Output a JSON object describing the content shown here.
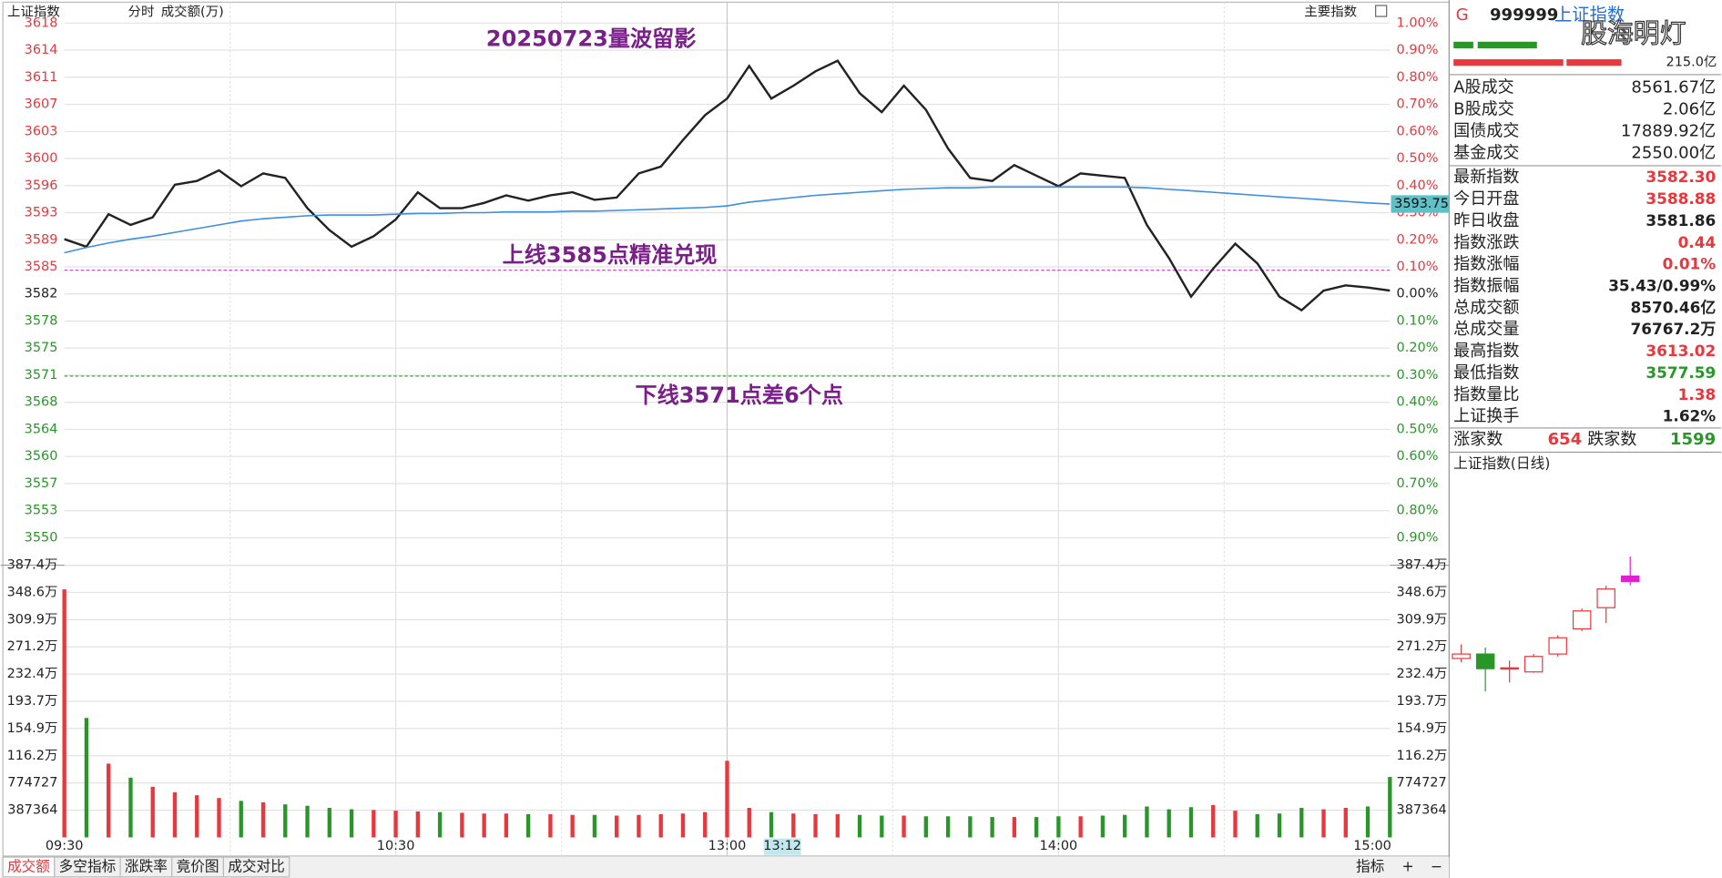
{
  "header": {
    "index_name": "上证指数",
    "tabs": [
      "分时",
      "成交额(万)"
    ],
    "main_index": "主要指数"
  },
  "chart_data": [
    {
      "type": "line",
      "title": "20250723量波留影",
      "annotations": [
        "上线3585点精准兑现",
        "下线3571点差6个点"
      ],
      "x": [
        0,
        4,
        8,
        12,
        16,
        20,
        24,
        28,
        32,
        36,
        40,
        44,
        48,
        52,
        56,
        60,
        64,
        68,
        72,
        76,
        80,
        84,
        88,
        92,
        96,
        100,
        104,
        108,
        112,
        116,
        120,
        124,
        128,
        132,
        136,
        140,
        144,
        148,
        152,
        156,
        160,
        164,
        168,
        172,
        176,
        180,
        184,
        188,
        192,
        196,
        200,
        204,
        208,
        212,
        216,
        220,
        224,
        228,
        232,
        236,
        240
      ],
      "xlim": [
        0,
        240
      ],
      "xticks": [
        {
          "value": 0,
          "label": "09:30"
        },
        {
          "value": 60,
          "label": "10:30"
        },
        {
          "value": 120,
          "label": "13:00"
        },
        {
          "value": 180,
          "label": "14:00"
        },
        {
          "value": 240,
          "label": "15:00"
        }
      ],
      "cursor_x": {
        "value": 130,
        "label": "13:12"
      },
      "series": [
        {
          "color": "#222222",
          "values": [
            3589.1,
            3588.1,
            3592.4,
            3591.0,
            3592.0,
            3596.3,
            3596.8,
            3598.2,
            3596.1,
            3597.8,
            3597.2,
            3593.2,
            3590.3,
            3588.1,
            3589.5,
            3591.7,
            3595.3,
            3593.2,
            3593.2,
            3593.9,
            3594.9,
            3594.2,
            3594.9,
            3595.3,
            3594.3,
            3594.6,
            3597.8,
            3598.7,
            3602.2,
            3605.5,
            3607.7,
            3612.0,
            3607.7,
            3609.4,
            3611.3,
            3612.7,
            3608.4,
            3605.9,
            3609.4,
            3606.2,
            3601.1,
            3597.2,
            3596.8,
            3598.9,
            3597.5,
            3596.1,
            3597.8,
            3597.5,
            3597.2,
            3591.0,
            3586.6,
            3581.5,
            3585.2,
            3588.5,
            3585.9,
            3581.5,
            3579.7,
            3582.3,
            3583.0,
            3582.7,
            3582.3
          ]
        },
        {
          "color": "#3a8ee6",
          "values": [
            3587.3,
            3588.0,
            3588.6,
            3589.1,
            3589.5,
            3590.0,
            3590.5,
            3591.0,
            3591.5,
            3591.8,
            3592.0,
            3592.2,
            3592.3,
            3592.3,
            3592.3,
            3592.4,
            3592.5,
            3592.5,
            3592.6,
            3592.6,
            3592.7,
            3592.7,
            3592.7,
            3592.8,
            3592.8,
            3592.9,
            3593.0,
            3593.1,
            3593.2,
            3593.3,
            3593.5,
            3594.0,
            3594.3,
            3594.6,
            3594.9,
            3595.1,
            3595.3,
            3595.5,
            3595.7,
            3595.8,
            3595.9,
            3595.9,
            3596.0,
            3596.0,
            3596.0,
            3596.0,
            3596.0,
            3596.0,
            3596.0,
            3595.9,
            3595.7,
            3595.5,
            3595.3,
            3595.1,
            3594.9,
            3594.7,
            3594.5,
            3594.3,
            3594.1,
            3593.9,
            3593.75
          ]
        }
      ],
      "ylim": [
        3549.62,
        3617.68
      ],
      "yticks": [
        {
          "value": 3617.68,
          "label": "3618"
        },
        {
          "value": 3614.1,
          "label": "3614"
        },
        {
          "value": 3610.52,
          "label": "3611"
        },
        {
          "value": 3606.93,
          "label": "3607"
        },
        {
          "value": 3603.35,
          "label": "3603"
        },
        {
          "value": 3599.77,
          "label": "3600"
        },
        {
          "value": 3596.19,
          "label": "3596"
        },
        {
          "value": 3592.61,
          "label": "3593"
        },
        {
          "value": 3589.02,
          "label": "3589"
        },
        {
          "value": 3585.44,
          "label": "3585"
        },
        {
          "value": 3581.86,
          "label": "3582"
        },
        {
          "value": 3578.28,
          "label": "3578"
        },
        {
          "value": 3574.7,
          "label": "3575"
        },
        {
          "value": 3571.11,
          "label": "3571"
        },
        {
          "value": 3567.53,
          "label": "3568"
        },
        {
          "value": 3563.95,
          "label": "3564"
        },
        {
          "value": 3560.37,
          "label": "3560"
        },
        {
          "value": 3556.79,
          "label": "3557"
        },
        {
          "value": 3553.2,
          "label": "3553"
        },
        {
          "value": 3549.62,
          "label": "3550"
        }
      ],
      "y2lim": [
        -0.9,
        1.0
      ],
      "y2ticks": [
        {
          "value": 1.0,
          "label": "1.00%"
        },
        {
          "value": 0.9,
          "label": "0.90%"
        },
        {
          "value": 0.8,
          "label": "0.80%"
        },
        {
          "value": 0.7,
          "label": "0.70%"
        },
        {
          "value": 0.6,
          "label": "0.60%"
        },
        {
          "value": 0.5,
          "label": "0.50%"
        },
        {
          "value": 0.4,
          "label": "0.40%"
        },
        {
          "value": 0.3,
          "label": "0.30%"
        },
        {
          "value": 0.2,
          "label": "0.20%"
        },
        {
          "value": 0.1,
          "label": "0.10%"
        },
        {
          "value": 0,
          "label": "0.00%"
        },
        {
          "value": -0.1,
          "label": "0.10%"
        },
        {
          "value": -0.2,
          "label": "0.20%"
        },
        {
          "value": -0.3,
          "label": "0.30%"
        },
        {
          "value": -0.4,
          "label": "0.40%"
        },
        {
          "value": -0.5,
          "label": "0.50%"
        },
        {
          "value": -0.6,
          "label": "0.60%"
        },
        {
          "value": -0.7,
          "label": "0.70%"
        },
        {
          "value": -0.8,
          "label": "0.80%"
        },
        {
          "value": -0.9,
          "label": "0.90%"
        }
      ],
      "ref_lines": [
        {
          "value": 3585,
          "color": "#c040c0"
        },
        {
          "value": 3571,
          "color": "#3a9a3a"
        }
      ],
      "grid": true,
      "up_color": "#e8373d",
      "down_color": "#2a962a"
    },
    {
      "type": "bar",
      "x": [
        0,
        4,
        8,
        12,
        16,
        20,
        24,
        28,
        32,
        36,
        40,
        44,
        48,
        52,
        56,
        60,
        64,
        68,
        72,
        76,
        80,
        84,
        88,
        92,
        96,
        100,
        104,
        108,
        112,
        116,
        120,
        124,
        128,
        132,
        136,
        140,
        144,
        148,
        152,
        156,
        160,
        164,
        168,
        172,
        176,
        180,
        184,
        188,
        192,
        196,
        200,
        204,
        208,
        212,
        216,
        220,
        224,
        228,
        232,
        236,
        240
      ],
      "xlim": [
        0,
        240
      ],
      "values": [
        3530000,
        1700000,
        1050000,
        850000,
        720000,
        640000,
        600000,
        560000,
        520000,
        500000,
        470000,
        450000,
        420000,
        400000,
        390000,
        380000,
        370000,
        360000,
        350000,
        340000,
        340000,
        330000,
        330000,
        320000,
        320000,
        310000,
        320000,
        330000,
        340000,
        360000,
        1090000,
        420000,
        360000,
        340000,
        330000,
        330000,
        320000,
        310000,
        310000,
        300000,
        300000,
        300000,
        290000,
        290000,
        290000,
        300000,
        300000,
        310000,
        320000,
        440000,
        400000,
        430000,
        460000,
        380000,
        330000,
        340000,
        420000,
        400000,
        420000,
        440000,
        860000
      ],
      "ylim": [
        0,
        3873640
      ],
      "yticks": [
        {
          "value": 3873640,
          "label": "387.4万"
        },
        {
          "value": 3486276,
          "label": "348.6万"
        },
        {
          "value": 3098912,
          "label": "309.9万"
        },
        {
          "value": 2711548,
          "label": "271.2万"
        },
        {
          "value": 2324184,
          "label": "232.4万"
        },
        {
          "value": 1936820,
          "label": "193.7万"
        },
        {
          "value": 1549456,
          "label": "154.9万"
        },
        {
          "value": 1162092,
          "label": "116.2万"
        },
        774727,
        387364
      ],
      "grid": true,
      "up_color": "#e8373d",
      "down_color": "#2a962a"
    },
    {
      "type": "candlestick",
      "title": "上证指数(日线)",
      "open": [
        3487.5,
        3493,
        3475,
        3471,
        3493,
        3524,
        3550,
        3588.88
      ],
      "high": [
        3505,
        3501,
        3485,
        3493,
        3516,
        3549,
        3577,
        3613.02
      ],
      "low": [
        3483,
        3447,
        3458,
        3470,
        3490,
        3521,
        3531,
        3577.59
      ],
      "close": [
        3493,
        3475,
        3476,
        3490,
        3513,
        3546,
        3573,
        3582.3
      ],
      "up_color": "#e8373d",
      "down_color": "#2a962a",
      "last_color": "#e020d0"
    }
  ],
  "panel": {
    "flag": "G",
    "code": "999999",
    "name": "上证指数",
    "watermark": "股海明灯",
    "partial_value": "215.0亿",
    "market_rows": [
      {
        "label": "A股成交",
        "value": "8561.67亿"
      },
      {
        "label": "B股成交",
        "value": "2.06亿"
      },
      {
        "label": "国债成交",
        "value": "17889.92亿"
      },
      {
        "label": "基金成交",
        "value": "2550.00亿"
      }
    ],
    "index_rows": [
      {
        "label": "最新指数",
        "value": "3582.30",
        "color": "#e8373d"
      },
      {
        "label": "今日开盘",
        "value": "3588.88",
        "color": "#e8373d"
      },
      {
        "label": "昨日收盘",
        "value": "3581.86",
        "color": "#222222"
      },
      {
        "label": "指数涨跌",
        "value": "0.44",
        "color": "#e8373d"
      },
      {
        "label": "指数涨幅",
        "value": "0.01%",
        "color": "#e8373d"
      },
      {
        "label": "指数振幅",
        "value": "35.43/0.99%",
        "color": "#222222"
      },
      {
        "label": "总成交额",
        "value": "8570.46亿",
        "color": "#222222"
      },
      {
        "label": "总成交量",
        "value": "76767.2万",
        "color": "#222222"
      },
      {
        "label": "最高指数",
        "value": "3613.02",
        "color": "#e8373d"
      },
      {
        "label": "最低指数",
        "value": "3577.59",
        "color": "#2a962a"
      },
      {
        "label": "指数量比",
        "value": "1.38",
        "color": "#e8373d"
      },
      {
        "label": "上证换手",
        "value": "1.62%",
        "color": "#222222"
      }
    ],
    "breadth": {
      "up_label": "涨家数",
      "up": 654,
      "down_label": "跌家数",
      "down": 1599
    }
  },
  "footer": {
    "tabs": [
      "成交额",
      "多空指标",
      "涨跌率",
      "竟价图",
      "成交对比"
    ],
    "right": [
      "指标",
      "+",
      "−"
    ]
  }
}
